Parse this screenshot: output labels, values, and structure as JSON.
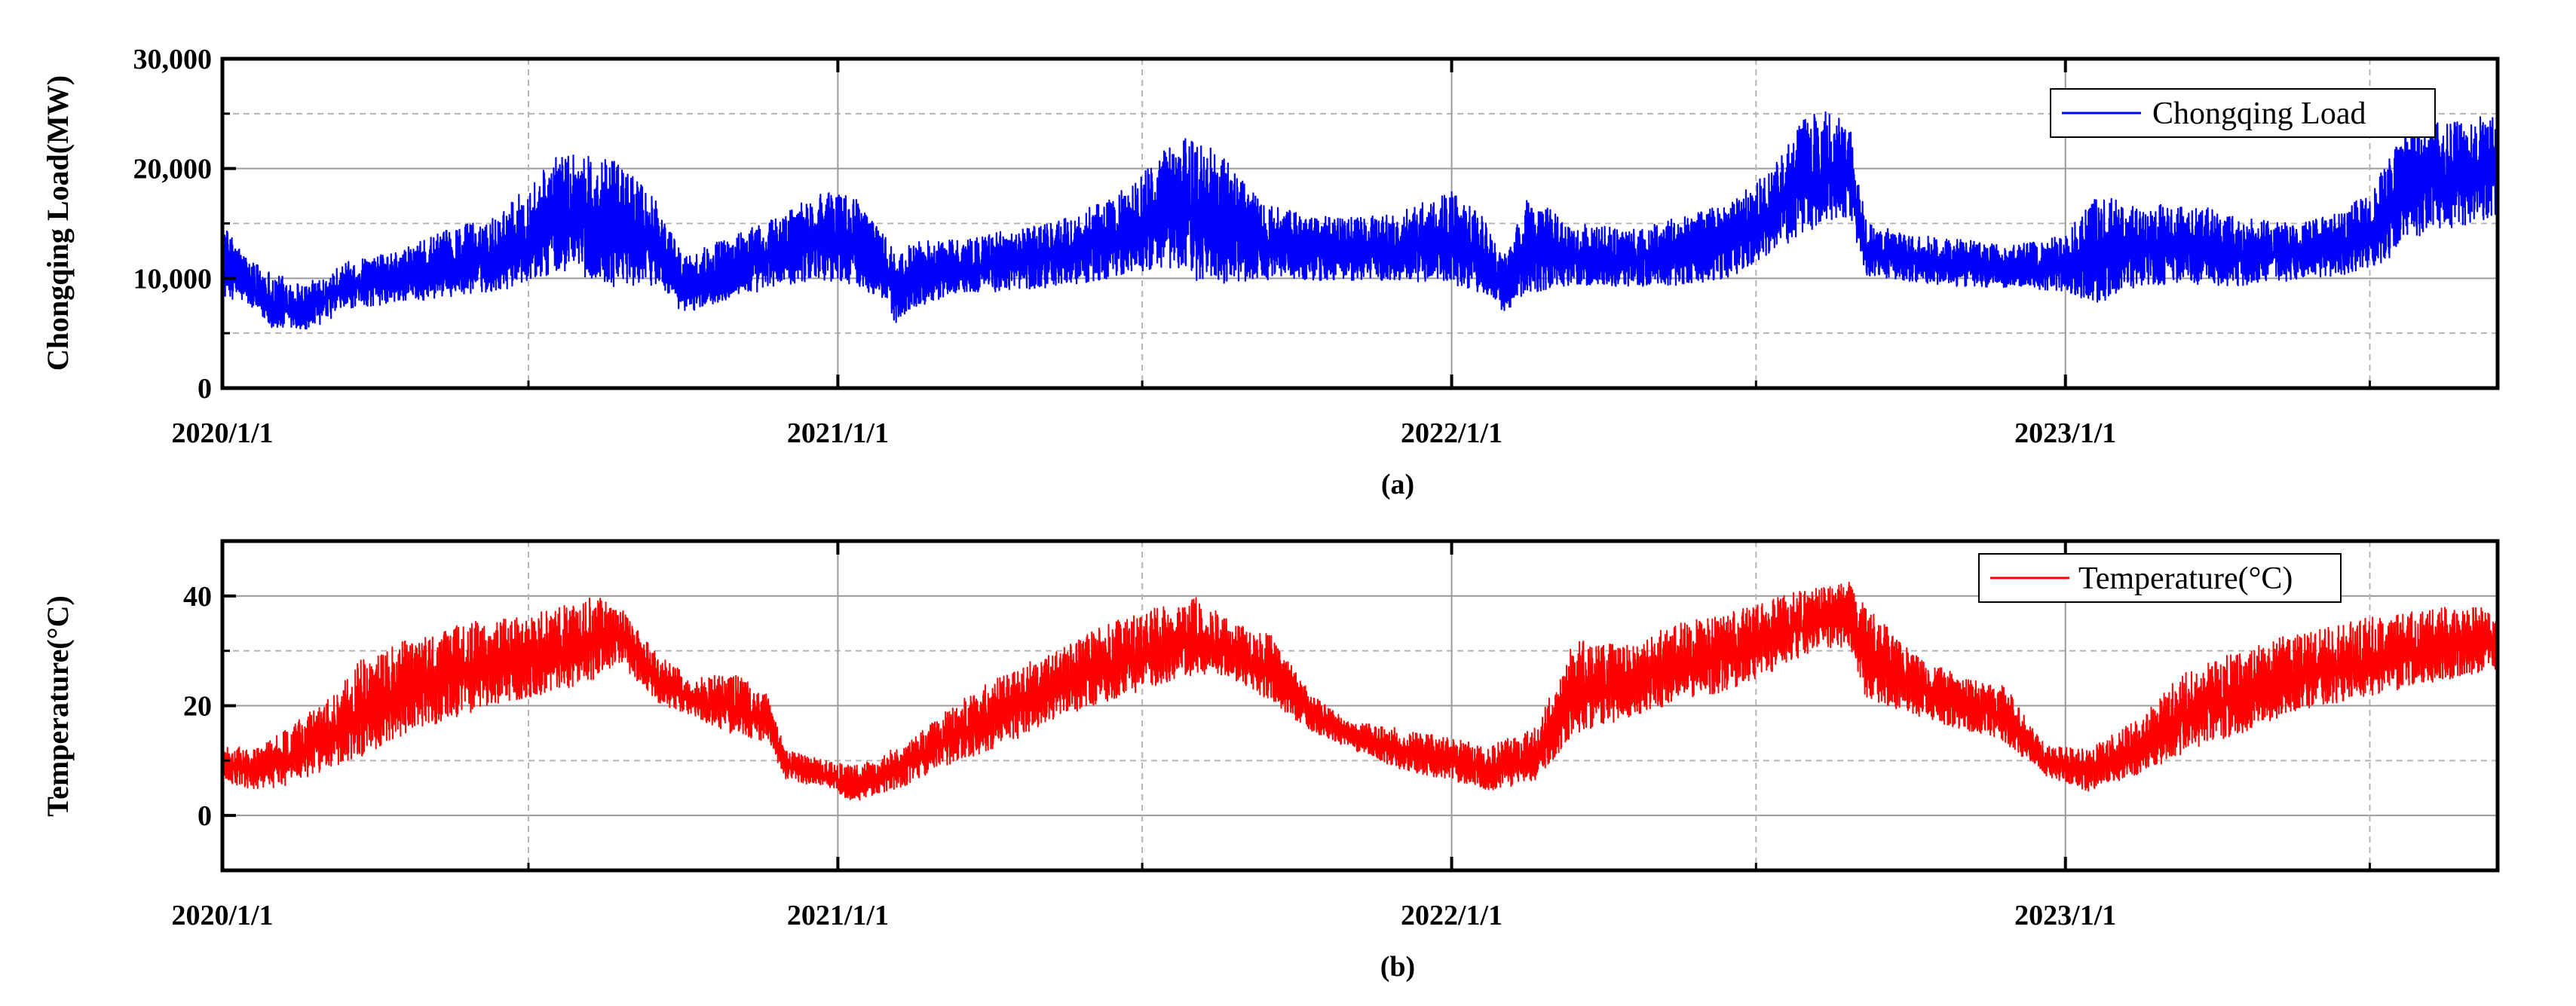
{
  "figure": {
    "panels": [
      {
        "caption": "(a)",
        "legend_label": "Chongqing Load",
        "ylabel": "Chongqing Load(MW)",
        "color": "#0000ff"
      },
      {
        "caption": "(b)",
        "legend_label": "Temperature(°C)",
        "ylabel": "Temperature(°C)",
        "color": "#ff0000"
      }
    ]
  },
  "chart_data": [
    {
      "type": "line",
      "title": "",
      "xlabel": "",
      "ylabel": "Chongqing Load(MW)",
      "x_range": [
        "2020-01-01",
        "2023-09-15"
      ],
      "ylim": [
        0,
        30000
      ],
      "x_tick_labels": [
        "2020/1/1",
        "2021/1/1",
        "2022/1/1",
        "2023/1/1"
      ],
      "x_tick_dates": [
        "2020-01-01",
        "2021-01-01",
        "2022-01-01",
        "2023-01-01"
      ],
      "y_tick_labels": [
        "0",
        "10,000",
        "20,000",
        "30,000"
      ],
      "y_ticks": [
        0,
        10000,
        20000,
        30000
      ],
      "grid": true,
      "legend_position": "top-right",
      "series": [
        {
          "name": "Chongqing Load",
          "color": "#0000ff",
          "envelope": {
            "dates": [
              "2020-01-01",
              "2020-01-15",
              "2020-02-01",
              "2020-02-20",
              "2020-03-15",
              "2020-04-15",
              "2020-05-15",
              "2020-06-15",
              "2020-07-10",
              "2020-07-25",
              "2020-08-10",
              "2020-08-25",
              "2020-09-15",
              "2020-10-01",
              "2020-11-01",
              "2020-12-01",
              "2020-12-20",
              "2021-01-10",
              "2021-01-25",
              "2021-02-05",
              "2021-02-15",
              "2021-03-15",
              "2021-04-15",
              "2021-05-15",
              "2021-06-15",
              "2021-07-10",
              "2021-07-25",
              "2021-08-05",
              "2021-08-20",
              "2021-09-10",
              "2021-10-01",
              "2021-11-01",
              "2021-12-01",
              "2022-01-01",
              "2022-01-20",
              "2022-02-01",
              "2022-02-15",
              "2022-03-15",
              "2022-04-15",
              "2022-05-15",
              "2022-06-15",
              "2022-07-10",
              "2022-07-25",
              "2022-08-10",
              "2022-08-25",
              "2022-09-05",
              "2022-10-01",
              "2022-11-01",
              "2022-12-01",
              "2023-01-01",
              "2023-01-20",
              "2023-02-15",
              "2023-03-15",
              "2023-04-15",
              "2023-05-15",
              "2023-06-15",
              "2023-07-10",
              "2023-07-25",
              "2023-08-15",
              "2023-09-15"
            ],
            "low": [
              8000,
              7500,
              5000,
              4800,
              7000,
              7500,
              8000,
              8500,
              9500,
              10000,
              9000,
              8500,
              9000,
              6500,
              8000,
              9000,
              9500,
              9000,
              8000,
              5500,
              7000,
              8500,
              8500,
              9000,
              9500,
              10500,
              10000,
              8500,
              9000,
              9500,
              9500,
              9500,
              9500,
              9000,
              8000,
              6500,
              8000,
              9000,
              9000,
              9000,
              9500,
              12000,
              13000,
              14000,
              15000,
              10000,
              9500,
              9000,
              9000,
              8500,
              7000,
              9000,
              9000,
              9000,
              9500,
              10000,
              11000,
              13000,
              14000,
              15000
            ],
            "high": [
              15000,
              12000,
              10500,
              9500,
              11500,
              12500,
              14500,
              16000,
              20000,
              22000,
              21000,
              20500,
              17000,
              12000,
              14000,
              16000,
              18000,
              17500,
              15000,
              12000,
              13500,
              13500,
              14500,
              15500,
              17500,
              21000,
              23500,
              22500,
              21000,
              17000,
              16000,
              15500,
              16000,
              18000,
              15500,
              12000,
              17500,
              15000,
              14500,
              15500,
              17000,
              20000,
              24000,
              25500,
              24500,
              15000,
              14000,
              13500,
              13000,
              14000,
              18000,
              16500,
              17000,
              15500,
              15000,
              16000,
              20000,
              25000,
              24000,
              25500
            ],
            "high_detail_note": ""
          }
        }
      ]
    },
    {
      "type": "line",
      "title": "",
      "xlabel": "",
      "ylabel": "Temperature(°C)",
      "x_range": [
        "2020-01-01",
        "2023-09-15"
      ],
      "ylim": [
        -10,
        50
      ],
      "x_tick_labels": [
        "2020/1/1",
        "2021/1/1",
        "2022/1/1",
        "2023/1/1"
      ],
      "x_tick_dates": [
        "2020-01-01",
        "2021-01-01",
        "2022-01-01",
        "2023-01-01"
      ],
      "y_tick_labels": [
        "0",
        "20",
        "40"
      ],
      "y_ticks": [
        0,
        20,
        40
      ],
      "grid": true,
      "legend_position": "top-right",
      "series": [
        {
          "name": "Temperature(°C)",
          "color": "#ff0000",
          "envelope": {
            "dates": [
              "2020-01-01",
              "2020-01-20",
              "2020-02-10",
              "2020-03-05",
              "2020-03-25",
              "2020-04-20",
              "2020-05-20",
              "2020-06-20",
              "2020-07-20",
              "2020-08-10",
              "2020-08-25",
              "2020-09-15",
              "2020-10-05",
              "2020-11-01",
              "2020-11-20",
              "2020-12-01",
              "2020-12-25",
              "2021-01-10",
              "2021-02-10",
              "2021-03-10",
              "2021-04-10",
              "2021-05-10",
              "2021-06-10",
              "2021-07-10",
              "2021-08-01",
              "2021-08-20",
              "2021-09-15",
              "2021-10-10",
              "2021-11-01",
              "2021-12-01",
              "2022-01-01",
              "2022-01-25",
              "2022-02-20",
              "2022-03-15",
              "2022-04-15",
              "2022-05-15",
              "2022-06-15",
              "2022-07-15",
              "2022-08-10",
              "2022-08-25",
              "2022-09-05",
              "2022-10-01",
              "2022-11-01",
              "2022-11-25",
              "2022-12-20",
              "2023-01-15",
              "2023-02-15",
              "2023-03-15",
              "2023-04-15",
              "2023-05-15",
              "2023-06-15",
              "2023-07-15",
              "2023-08-15",
              "2023-09-15"
            ],
            "low": [
              6,
              4,
              5,
              8,
              10,
              14,
              17,
              20,
              22,
              24,
              27,
              20,
              18,
              14,
              13,
              6,
              5,
              2,
              5,
              9,
              12,
              17,
              20,
              23,
              25,
              25,
              20,
              15,
              12,
              8,
              6,
              4,
              6,
              14,
              17,
              20,
              22,
              26,
              30,
              30,
              20,
              18,
              15,
              13,
              7,
              4,
              7,
              11,
              14,
              18,
              20,
              22,
              24,
              26
            ],
            "high": [
              13,
              12,
              16,
              22,
              29,
              32,
              35,
              36,
              38,
              40,
              38,
              30,
              25,
              26,
              22,
              12,
              10,
              9,
              13,
              20,
              26,
              30,
              35,
              38,
              40,
              36,
              33,
              22,
              17,
              16,
              14,
              13,
              16,
              32,
              31,
              35,
              37,
              40,
              42,
              43,
              38,
              30,
              25,
              24,
              13,
              12,
              18,
              27,
              30,
              33,
              35,
              37,
              38,
              38
            ]
          }
        }
      ]
    }
  ]
}
